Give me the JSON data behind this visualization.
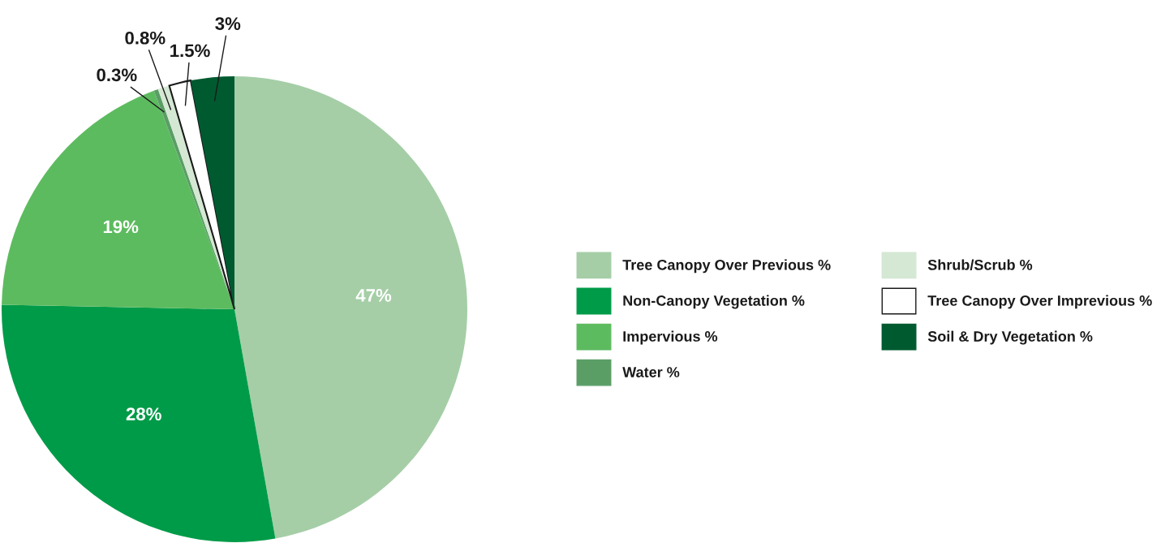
{
  "chart_data": {
    "type": "pie",
    "categories": [
      "Tree Canopy Over Previous %",
      "Non-Canopy Vegetation %",
      "Impervious %",
      "Water %",
      "Shrub/Scrub %",
      "Tree Canopy Over Imprevious %",
      "Soil & Dry Vegetation %"
    ],
    "values": [
      47,
      28,
      19,
      0.3,
      0.8,
      1.5,
      3
    ],
    "colors": [
      "#a5cea7",
      "#009b48",
      "#5dbb5f",
      "#5a9e66",
      "#d4e8d3",
      "#ffffff",
      "#005a30"
    ],
    "value_labels": [
      "47%",
      "28%",
      "19%",
      "0.3%",
      "0.8%",
      "1.5%",
      "3%"
    ],
    "legend": "right"
  }
}
